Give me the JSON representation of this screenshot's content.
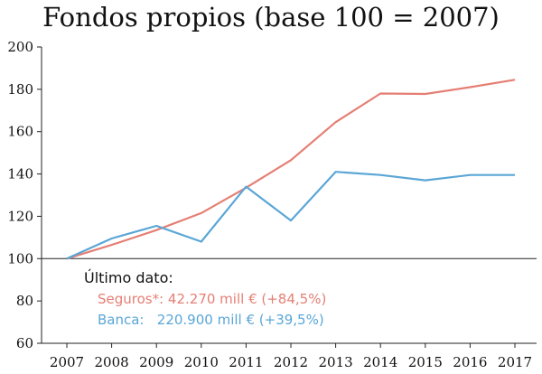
{
  "chart_data": {
    "type": "line",
    "title": "Fondos propios (base 100 = 2007)",
    "xlabel": "",
    "ylabel": "",
    "x": [
      "2007",
      "2008",
      "2009",
      "2010",
      "2011",
      "2012",
      "2013",
      "2014",
      "2015",
      "2016",
      "2017"
    ],
    "ylim": [
      60,
      200
    ],
    "yticks": [
      60,
      80,
      100,
      120,
      140,
      160,
      180,
      200
    ],
    "grid": false,
    "baseline": 100,
    "series": [
      {
        "name": "Seguros",
        "color": "#e57f74",
        "values": [
          100,
          106.5,
          113.5,
          121.5,
          133.5,
          146.5,
          164.5,
          178,
          177.8,
          181,
          184.5
        ]
      },
      {
        "name": "Banca",
        "color": "#5aa6d6",
        "values": [
          100,
          109.5,
          115.5,
          108,
          134,
          118,
          141,
          139.5,
          137,
          139.5,
          139.5
        ]
      }
    ],
    "annotations": {
      "heading": "Último dato:",
      "seguros_line": "Seguros*: 42.270 mill € (+84,5%)",
      "banca_line": "Banca:   220.900 mill € (+39,5%)"
    }
  }
}
